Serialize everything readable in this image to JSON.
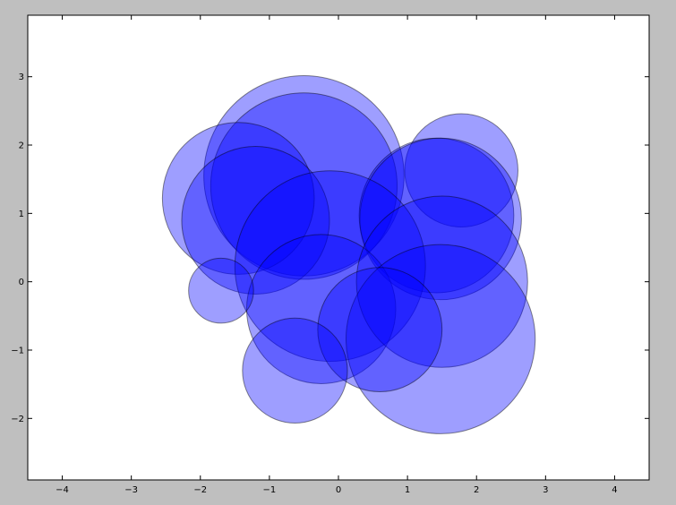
{
  "chart_data": {
    "type": "scatter",
    "title": "",
    "xlabel": "",
    "ylabel": "",
    "xlim": [
      -4.5,
      4.5
    ],
    "ylim": [
      -2.9,
      3.9
    ],
    "xticks": [
      -4,
      -3,
      -2,
      -1,
      0,
      1,
      2,
      3,
      4
    ],
    "yticks": [
      -2,
      -1,
      0,
      1,
      2,
      3
    ],
    "xtick_labels": [
      "−4",
      "−3",
      "−2",
      "−1",
      "0",
      "1",
      "2",
      "3",
      "4"
    ],
    "ytick_labels": [
      "−2",
      "−1",
      "0",
      "1",
      "2",
      "3"
    ],
    "grid": false,
    "marker_color": "#0000ff",
    "marker_edge_color": "#000000",
    "marker_alpha": 0.38,
    "points": [
      {
        "x": -0.5,
        "y": 1.55,
        "r": 1.45
      },
      {
        "x": -0.5,
        "y": 1.4,
        "r": 1.35
      },
      {
        "x": -1.45,
        "y": 1.22,
        "r": 1.1
      },
      {
        "x": -1.2,
        "y": 0.9,
        "r": 1.07
      },
      {
        "x": 1.78,
        "y": 1.63,
        "r": 0.82
      },
      {
        "x": 1.42,
        "y": 0.97,
        "r": 1.12
      },
      {
        "x": 1.48,
        "y": 0.92,
        "r": 1.17
      },
      {
        "x": -0.12,
        "y": 0.23,
        "r": 1.38
      },
      {
        "x": -0.25,
        "y": -0.4,
        "r": 1.08
      },
      {
        "x": 1.5,
        "y": 0.0,
        "r": 1.24
      },
      {
        "x": 1.48,
        "y": -0.84,
        "r": 1.37
      },
      {
        "x": 0.6,
        "y": -0.7,
        "r": 0.9
      },
      {
        "x": -1.7,
        "y": -0.13,
        "r": 0.47
      },
      {
        "x": -0.63,
        "y": -1.3,
        "r": 0.76
      }
    ]
  }
}
